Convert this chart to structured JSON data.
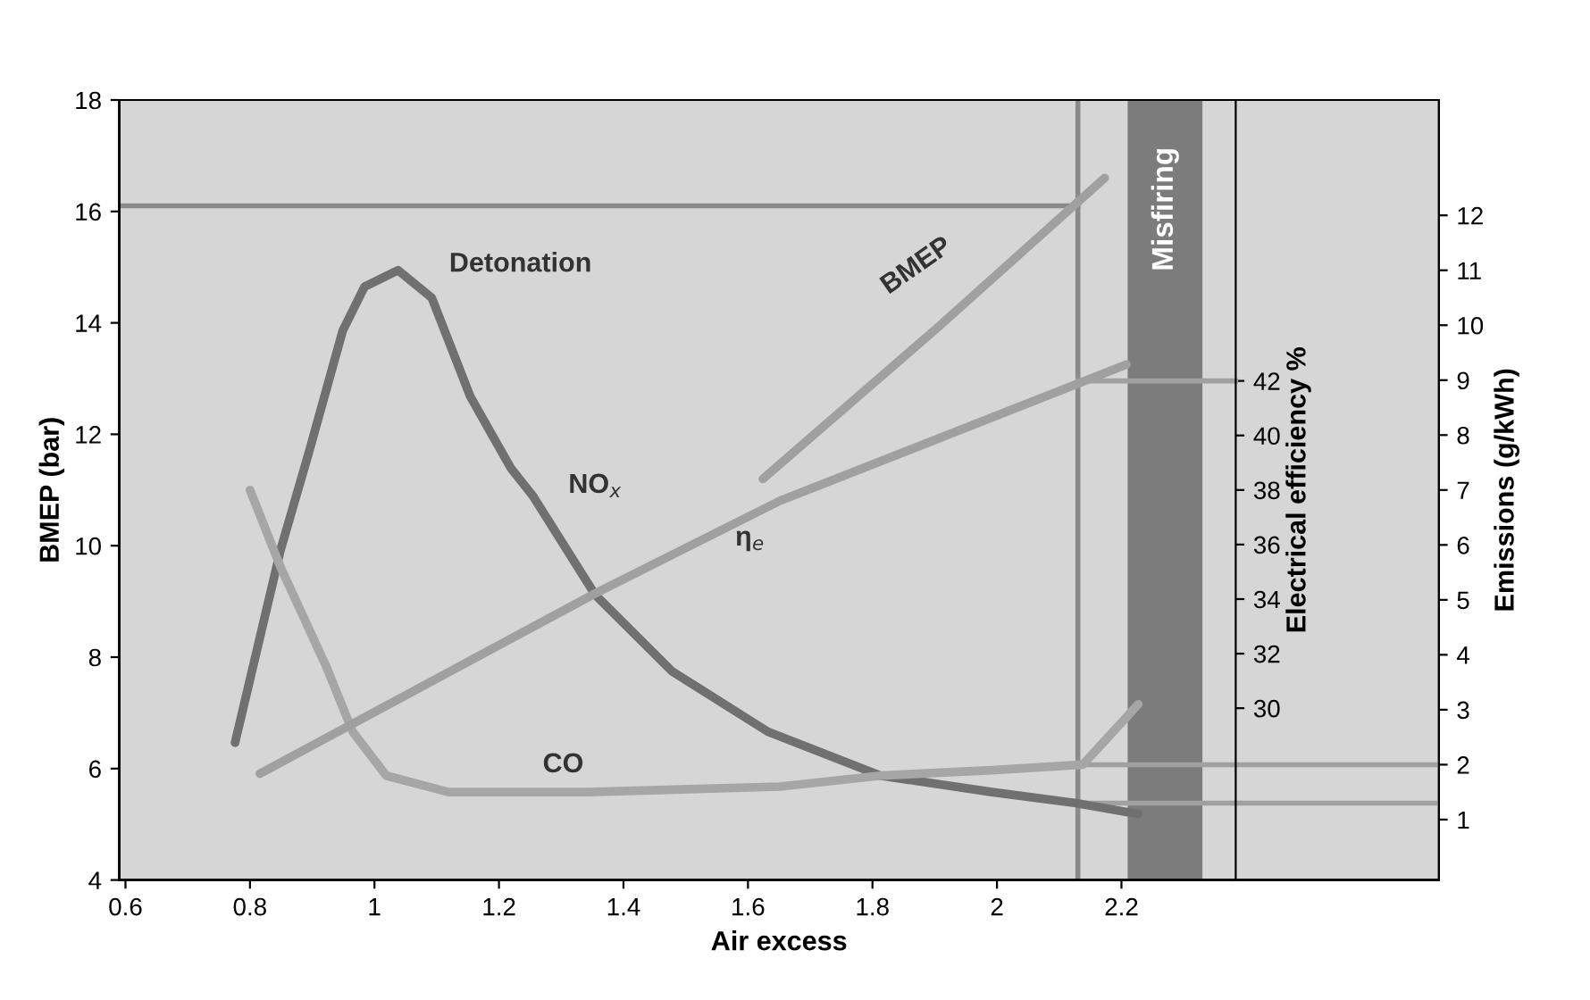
{
  "chart_data": {
    "type": "line",
    "xlabel": "Air excess",
    "ylabel": "BMEP (bar)",
    "y2label": "Emissions (g/kWh)",
    "y3label": "Electrical efficiency %",
    "xlim": [
      0.59,
      2.71
    ],
    "xticks": [
      0.6,
      0.8,
      1,
      1.2,
      1.4,
      1.6,
      1.8,
      2,
      2.2
    ],
    "ylim": [
      4,
      18
    ],
    "yticks": [
      4,
      6,
      8,
      10,
      12,
      14,
      16,
      18
    ],
    "y2lim": [
      -0.1,
      14.1
    ],
    "y2ticks": [
      1,
      2,
      3,
      4,
      5,
      6,
      7,
      8,
      9,
      10,
      11,
      12
    ],
    "y3lim": [
      23.7,
      52.3
    ],
    "y3ticks": [
      30,
      32,
      34,
      36,
      38,
      40,
      42
    ],
    "grid": false,
    "series": [
      {
        "name": "NO$_{x}$",
        "color": "#707070",
        "axis": "y2",
        "x": [
          0.776,
          0.849,
          0.895,
          0.949,
          0.984,
          1.038,
          1.092,
          1.154,
          1.219,
          1.254,
          1.354,
          1.478,
          1.632,
          1.813,
          1.992,
          2.127,
          2.227
        ],
        "values": [
          2.4,
          5.9,
          7.7,
          9.9,
          10.7,
          11.0,
          10.5,
          8.7,
          7.4,
          6.9,
          5.1,
          3.7,
          2.6,
          1.8,
          1.5,
          1.3,
          1.1
        ]
      },
      {
        "name": "CO",
        "color": "#a6a6a6",
        "axis": "y2",
        "x": [
          0.8,
          0.849,
          0.922,
          0.965,
          1.019,
          1.119,
          1.343,
          1.651,
          1.813,
          1.992,
          2.138,
          2.227
        ],
        "values": [
          7.0,
          5.6,
          3.8,
          2.6,
          1.8,
          1.5,
          1.5,
          1.6,
          1.8,
          1.9,
          2.0,
          3.1
        ]
      },
      {
        "name": "BMEP",
        "color": "#a0a0a0",
        "x": [
          1.624,
          1.903,
          2.173
        ],
        "values": [
          11.2,
          13.9,
          16.6
        ]
      },
      {
        "name": "η$_{e}$",
        "color": "#a0a0a0",
        "axis": "y3",
        "x": [
          0.816,
          1.354,
          1.651,
          2.208
        ],
        "values": [
          27.6,
          34.2,
          37.6,
          42.6
        ]
      }
    ],
    "ref_lines": [
      {
        "axis": "y",
        "value": 16.1,
        "color": "#8a8a8a"
      },
      {
        "axis": "x",
        "value": 2.13,
        "color": "#8a8a8a"
      },
      {
        "axis": "y2",
        "value": 2.0,
        "color": "#a0a0a0"
      },
      {
        "axis": "y2",
        "value": 1.3,
        "color": "#a0a0a0"
      },
      {
        "axis": "y3",
        "value": 42,
        "color": "#a0a0a0"
      }
    ],
    "bands": [
      {
        "axis": "x",
        "from": 2.21,
        "to": 2.33,
        "label": "Misfiring",
        "color": "#7c7c7c"
      }
    ],
    "annotations": [
      "Detonation"
    ]
  }
}
